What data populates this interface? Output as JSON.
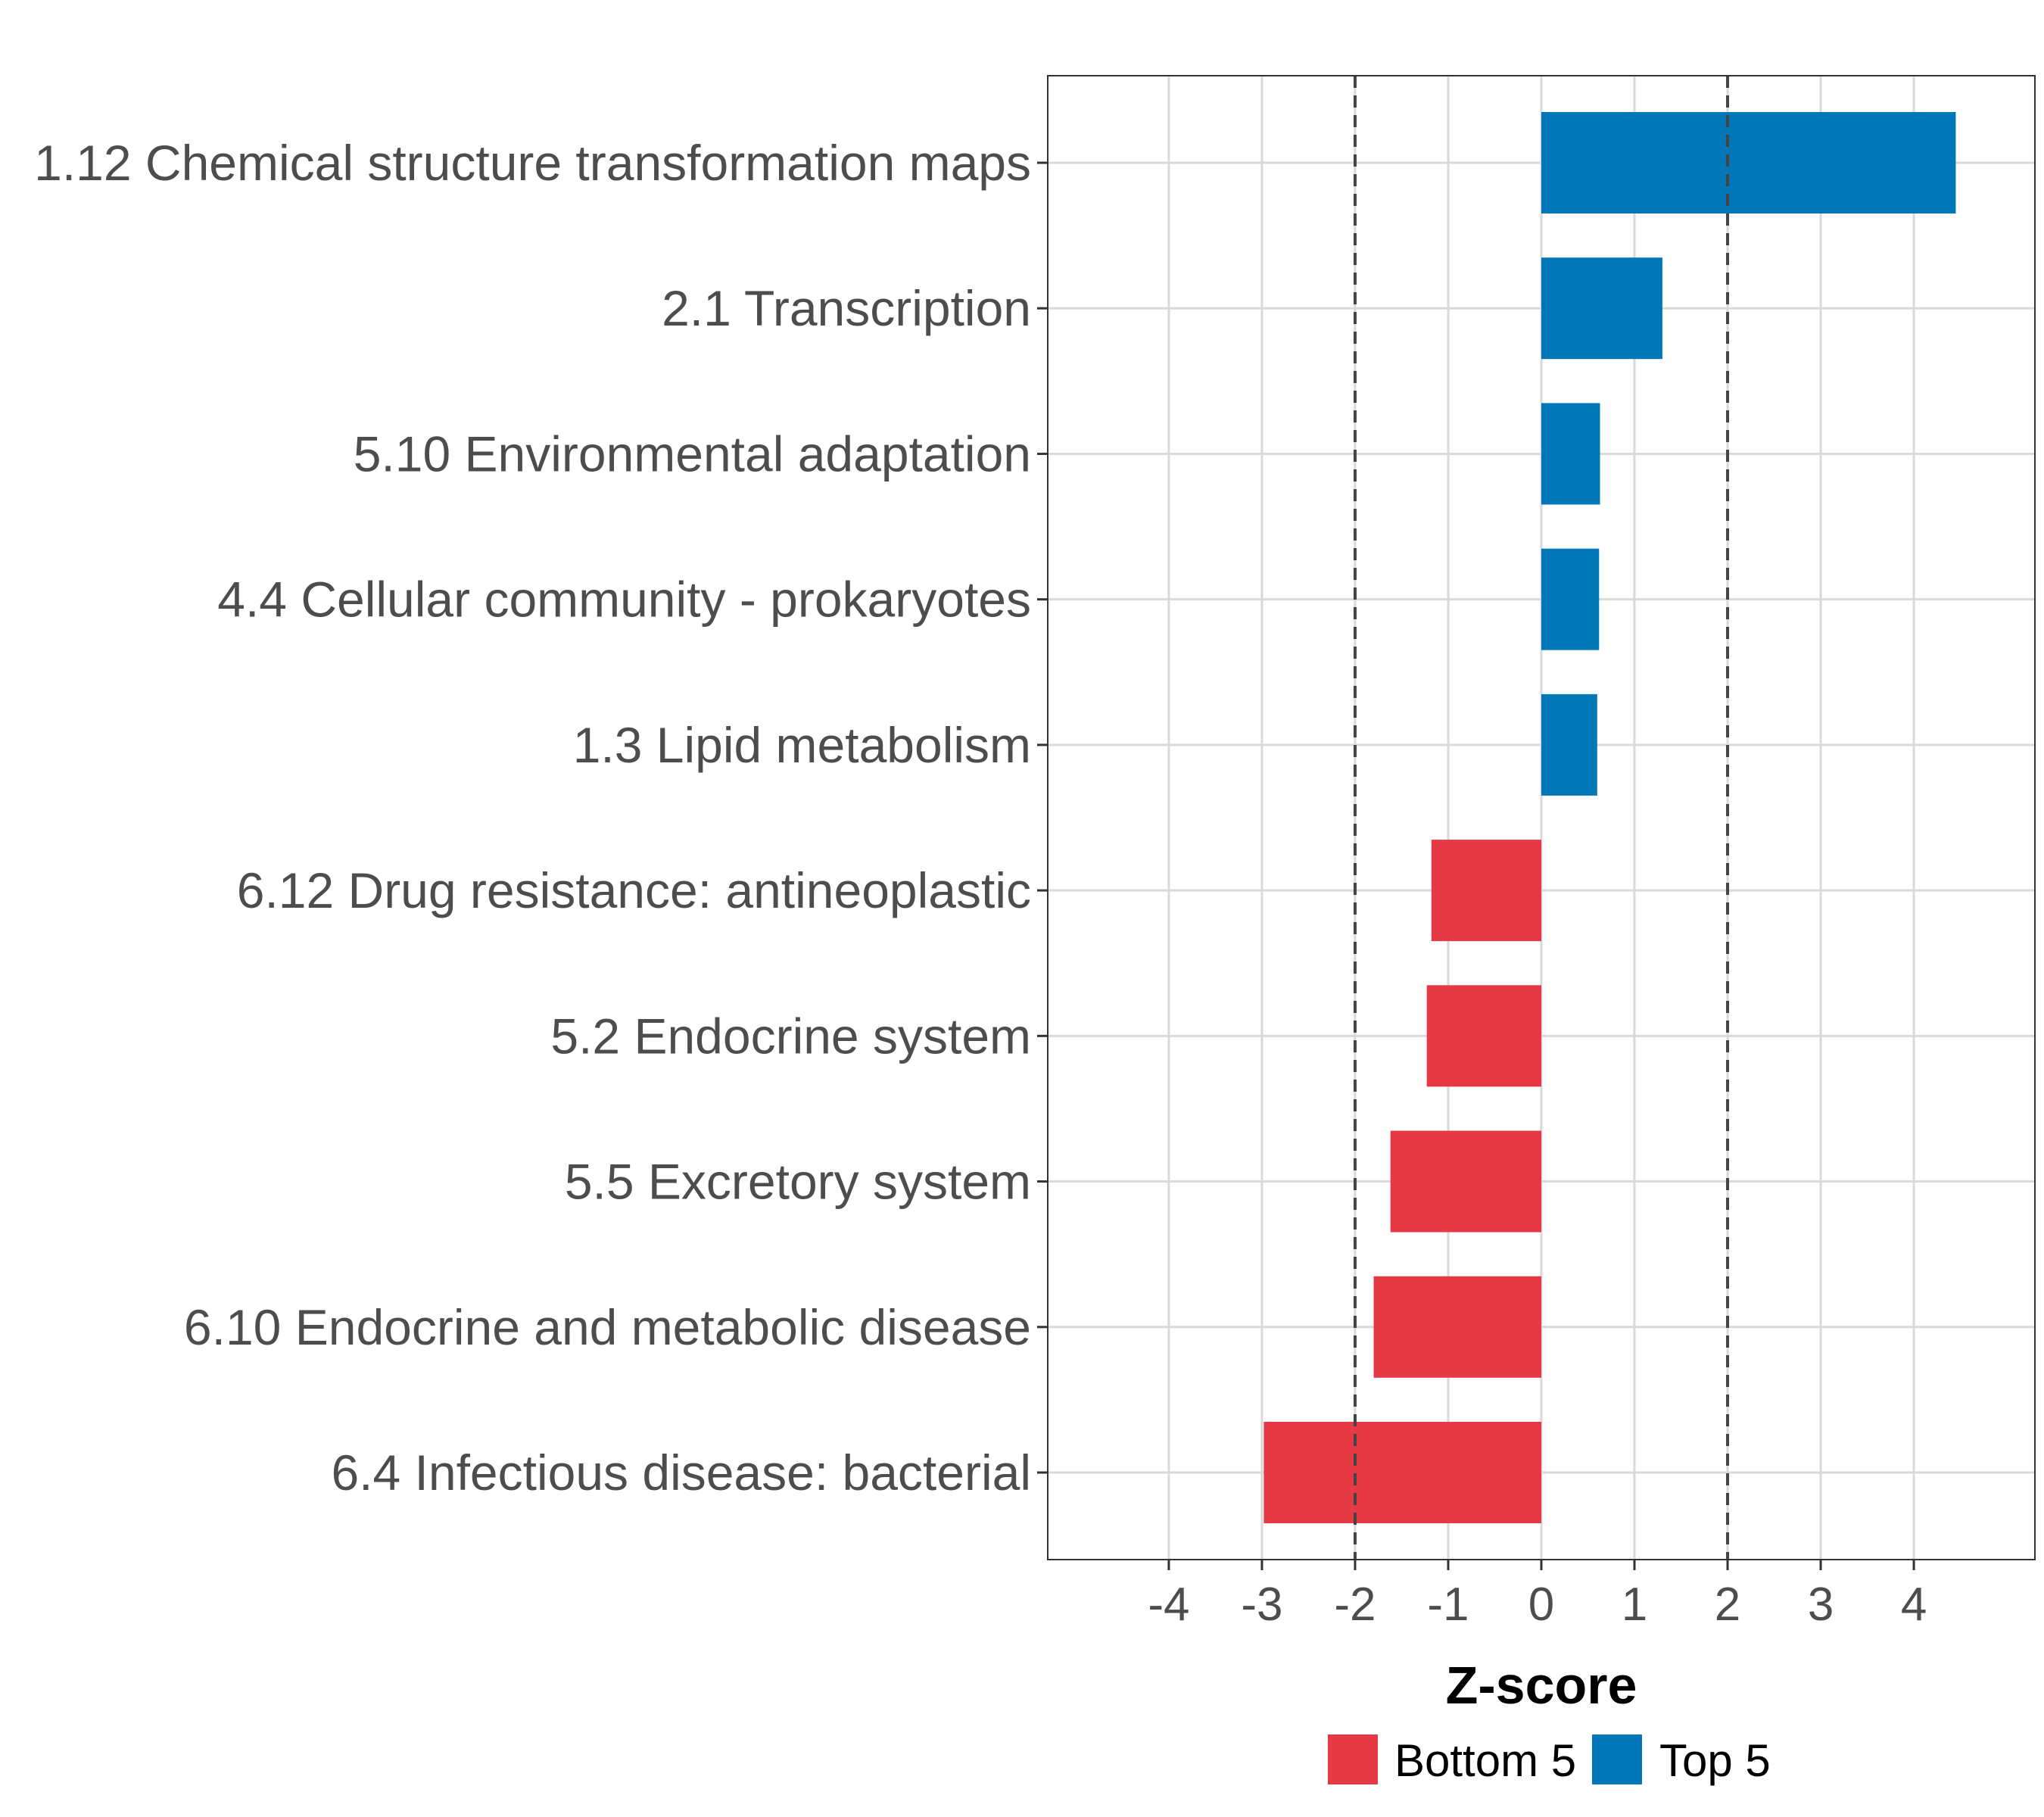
{
  "chart_data": {
    "type": "bar",
    "orientation": "horizontal",
    "title": "",
    "xlabel": "Z-score",
    "ylabel": "",
    "xlim": [
      -5.3,
      5.3
    ],
    "xticks": [
      -4,
      -3,
      -2,
      -1,
      0,
      1,
      2,
      3,
      4
    ],
    "xtick_labels": [
      "-4",
      "-3",
      "-2",
      "-1",
      "0",
      "1",
      "2",
      "3",
      "4"
    ],
    "reference_lines": [
      -2,
      2
    ],
    "grid": true,
    "legend_position": "bottom",
    "categories": [
      "1.12 Chemical structure transformation maps",
      "2.1 Transcription",
      "5.10 Environmental adaptation",
      "4.4 Cellular community - prokaryotes",
      "1.3 Lipid metabolism",
      "6.12 Drug resistance: antineoplastic",
      "5.2 Endocrine system",
      "5.5 Excretory system",
      "6.10 Endocrine and metabolic disease",
      "6.4 Infectious disease: bacterial"
    ],
    "values": [
      4.45,
      1.3,
      0.63,
      0.62,
      0.6,
      -1.18,
      -1.23,
      -1.62,
      -1.8,
      -2.98
    ],
    "groups": [
      "Top 5",
      "Top 5",
      "Top 5",
      "Top 5",
      "Top 5",
      "Bottom 5",
      "Bottom 5",
      "Bottom 5",
      "Bottom 5",
      "Bottom 5"
    ],
    "legend": [
      {
        "label": "Bottom 5",
        "color": "#e63946"
      },
      {
        "label": "Top 5",
        "color": "#0077b6"
      }
    ]
  },
  "colors": {
    "top": "#0077b6",
    "bottom": "#e63946",
    "grid": "#d9d9d9",
    "refline": "#444444",
    "text": "#4d4d4d"
  }
}
